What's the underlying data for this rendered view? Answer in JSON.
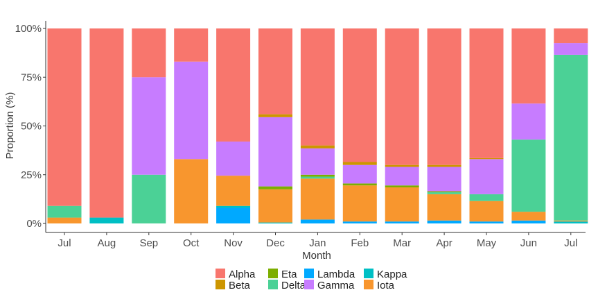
{
  "chart_data": {
    "type": "bar",
    "stacked": true,
    "xlabel": "Month",
    "ylabel": "Proportion (%)",
    "ylim": [
      0,
      100
    ],
    "yticks": [
      "0%",
      "25%",
      "50%",
      "75%",
      "100%"
    ],
    "grid": false,
    "legend_position": "bottom",
    "categories": [
      "Jul",
      "Aug",
      "Sep",
      "Oct",
      "Nov",
      "Dec",
      "Jan",
      "Feb",
      "Mar",
      "Apr",
      "May",
      "Jun",
      "Jul"
    ],
    "series": [
      {
        "name": "Lambda",
        "color": "#00A9FF",
        "values": [
          0,
          0,
          0,
          0,
          8,
          0,
          2,
          1,
          1,
          1.5,
          1,
          1.5,
          0
        ]
      },
      {
        "name": "Kappa",
        "color": "#00BFC4",
        "values": [
          0,
          3,
          0,
          0,
          1,
          0.5,
          0,
          0,
          0,
          0,
          0,
          0,
          1
        ]
      },
      {
        "name": "Iota",
        "color": "#F8962E",
        "values": [
          3,
          0,
          0,
          33,
          15.5,
          17,
          21,
          18.5,
          17.5,
          13.5,
          10.5,
          4.5,
          0.5
        ]
      },
      {
        "name": "Delta",
        "color": "#4BD196",
        "values": [
          6,
          0,
          25,
          0,
          0,
          0,
          1,
          0,
          0,
          1,
          3.5,
          37,
          85
        ]
      },
      {
        "name": "Eta",
        "color": "#7CAE00",
        "values": [
          0,
          0,
          0,
          0,
          0,
          1.5,
          1,
          1,
          1,
          0.5,
          0,
          0,
          0
        ]
      },
      {
        "name": "Gamma",
        "color": "#C77CFF",
        "values": [
          0,
          0,
          50,
          50,
          17.5,
          35.5,
          13.5,
          9.5,
          9.5,
          12.5,
          18,
          18.5,
          6
        ]
      },
      {
        "name": "Beta",
        "color": "#CD9600",
        "values": [
          0,
          0,
          0,
          0,
          0,
          1.5,
          1.5,
          1.5,
          1,
          1,
          0.5,
          0,
          0
        ]
      },
      {
        "name": "Alpha",
        "color": "#F8766D",
        "values": [
          91,
          97,
          25,
          17,
          58,
          44,
          60,
          68.5,
          70,
          70,
          66.5,
          38.5,
          7.5
        ]
      }
    ],
    "legend_order": [
      "Alpha",
      "Beta",
      "Eta",
      "Delta",
      "Lambda",
      "Gamma",
      "Kappa",
      "Iota"
    ]
  }
}
